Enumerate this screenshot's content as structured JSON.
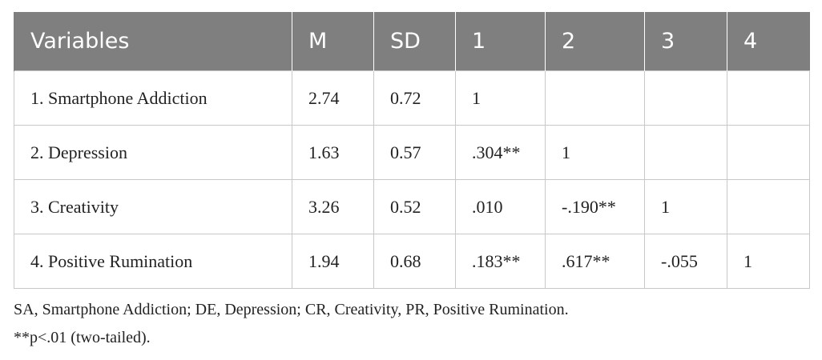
{
  "table": {
    "header": [
      "Variables",
      "M",
      "SD",
      "1",
      "2",
      "3",
      "4"
    ],
    "rows": [
      [
        "1. Smartphone Addiction",
        "2.74",
        "0.72",
        "1"
      ],
      [
        "2. Depression",
        "1.63",
        "0.57",
        ".304**",
        "1"
      ],
      [
        "3. Creativity",
        "3.26",
        "0.52",
        ".010",
        "-.190**",
        "1"
      ],
      [
        "4. Positive Rumination",
        "1.94",
        "0.68",
        ".183**",
        ".617**",
        "-.055",
        "1"
      ]
    ]
  },
  "footnotes": [
    "SA, Smartphone Addiction; DE, Depression; CR, Creativity, PR, Positive Rumination.",
    "**p<.01 (two-tailed)."
  ]
}
